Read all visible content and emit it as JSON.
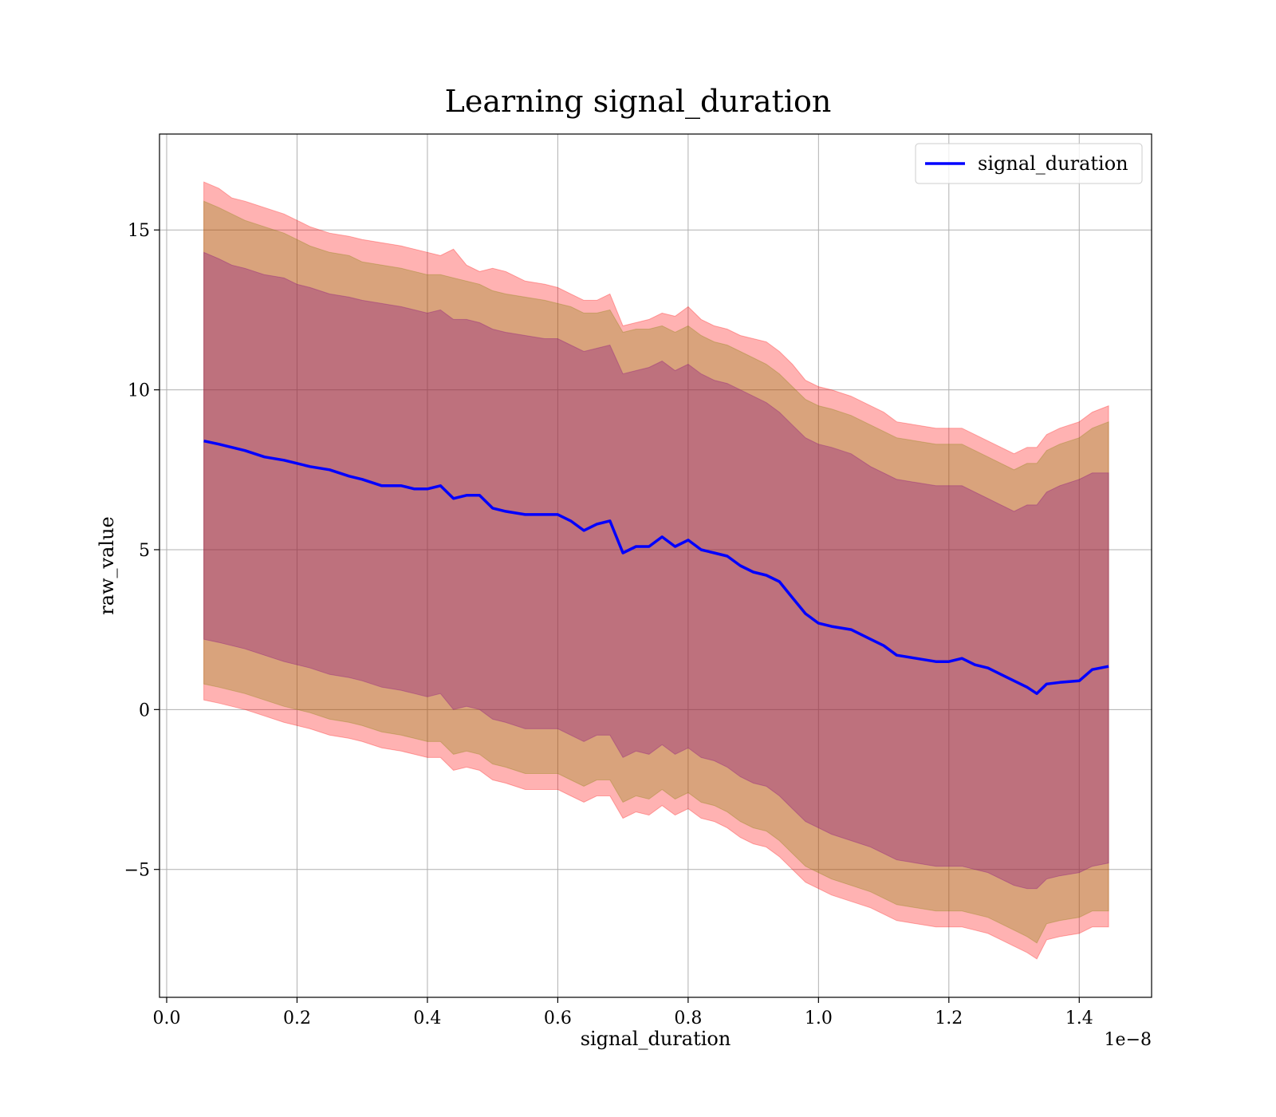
{
  "chart_data": {
    "type": "line",
    "title": "Learning signal_duration",
    "xlabel": "signal_duration",
    "ylabel": "raw_value",
    "x_offset_label": "1e−8",
    "xlim": [
      -0.011,
      1.511
    ],
    "ylim": [
      -9.0,
      18.0
    ],
    "x_ticks": [
      0.0,
      0.2,
      0.4,
      0.6,
      0.8,
      1.0,
      1.2,
      1.4
    ],
    "x_tick_labels": [
      "0.0",
      "0.2",
      "0.4",
      "0.6",
      "0.8",
      "1.0",
      "1.2",
      "1.4"
    ],
    "y_ticks": [
      -5,
      0,
      5,
      10,
      15
    ],
    "y_tick_labels": [
      "−5",
      "0",
      "5",
      "10",
      "15"
    ],
    "grid": true,
    "legend_position": "top-right",
    "series": [
      {
        "name": "signal_duration",
        "color": "#0000ff",
        "x": [
          0.057,
          0.08,
          0.1,
          0.12,
          0.15,
          0.18,
          0.2,
          0.22,
          0.25,
          0.28,
          0.3,
          0.33,
          0.36,
          0.38,
          0.4,
          0.42,
          0.44,
          0.46,
          0.48,
          0.5,
          0.52,
          0.55,
          0.58,
          0.6,
          0.62,
          0.64,
          0.66,
          0.68,
          0.7,
          0.72,
          0.74,
          0.76,
          0.78,
          0.8,
          0.82,
          0.84,
          0.86,
          0.88,
          0.9,
          0.92,
          0.94,
          0.96,
          0.98,
          1.0,
          1.02,
          1.05,
          1.08,
          1.1,
          1.12,
          1.15,
          1.18,
          1.2,
          1.22,
          1.24,
          1.26,
          1.28,
          1.3,
          1.32,
          1.335,
          1.35,
          1.37,
          1.4,
          1.42,
          1.445
        ],
        "y": [
          8.4,
          8.3,
          8.2,
          8.1,
          7.9,
          7.8,
          7.7,
          7.6,
          7.5,
          7.3,
          7.2,
          7.0,
          7.0,
          6.9,
          6.9,
          7.0,
          6.6,
          6.7,
          6.7,
          6.3,
          6.2,
          6.1,
          6.1,
          6.1,
          5.9,
          5.6,
          5.8,
          5.9,
          4.9,
          5.1,
          5.1,
          5.4,
          5.1,
          5.3,
          5.0,
          4.9,
          4.8,
          4.5,
          4.3,
          4.2,
          4.0,
          3.5,
          3.0,
          2.7,
          2.6,
          2.5,
          2.2,
          2.0,
          1.7,
          1.6,
          1.5,
          1.5,
          1.6,
          1.4,
          1.3,
          1.1,
          0.9,
          0.7,
          0.5,
          0.8,
          0.85,
          0.9,
          1.25,
          1.35
        ]
      }
    ],
    "bands": [
      {
        "color": "#ff0000",
        "opacity": 0.3,
        "upper": [
          16.5,
          16.3,
          16.0,
          15.9,
          15.7,
          15.5,
          15.3,
          15.1,
          14.9,
          14.8,
          14.7,
          14.6,
          14.5,
          14.4,
          14.3,
          14.2,
          14.4,
          13.9,
          13.7,
          13.8,
          13.7,
          13.4,
          13.3,
          13.2,
          13.0,
          12.8,
          12.8,
          13.0,
          12.0,
          12.1,
          12.2,
          12.4,
          12.3,
          12.6,
          12.2,
          12.0,
          11.9,
          11.7,
          11.6,
          11.5,
          11.2,
          10.8,
          10.3,
          10.1,
          10.0,
          9.8,
          9.5,
          9.3,
          9.0,
          8.9,
          8.8,
          8.8,
          8.8,
          8.6,
          8.4,
          8.2,
          8.0,
          8.2,
          8.2,
          8.6,
          8.8,
          9.0,
          9.3,
          9.5
        ],
        "lower": [
          0.3,
          0.2,
          0.1,
          0.0,
          -0.2,
          -0.4,
          -0.5,
          -0.6,
          -0.8,
          -0.9,
          -1.0,
          -1.2,
          -1.3,
          -1.4,
          -1.5,
          -1.5,
          -1.9,
          -1.8,
          -1.9,
          -2.2,
          -2.3,
          -2.5,
          -2.5,
          -2.5,
          -2.7,
          -2.9,
          -2.7,
          -2.7,
          -3.4,
          -3.2,
          -3.3,
          -3.0,
          -3.3,
          -3.1,
          -3.4,
          -3.5,
          -3.7,
          -4.0,
          -4.2,
          -4.3,
          -4.6,
          -5.0,
          -5.4,
          -5.6,
          -5.8,
          -6.0,
          -6.2,
          -6.4,
          -6.6,
          -6.7,
          -6.8,
          -6.8,
          -6.8,
          -6.9,
          -7.0,
          -7.2,
          -7.4,
          -7.6,
          -7.8,
          -7.2,
          -7.1,
          -7.0,
          -6.8,
          -6.8
        ]
      },
      {
        "color": "#808000",
        "opacity": 0.3,
        "upper": [
          15.9,
          15.7,
          15.5,
          15.3,
          15.1,
          14.9,
          14.7,
          14.5,
          14.3,
          14.2,
          14.0,
          13.9,
          13.8,
          13.7,
          13.6,
          13.6,
          13.5,
          13.4,
          13.3,
          13.1,
          13.0,
          12.9,
          12.8,
          12.7,
          12.6,
          12.4,
          12.4,
          12.5,
          11.8,
          11.9,
          11.9,
          12.0,
          11.8,
          12.0,
          11.7,
          11.5,
          11.4,
          11.2,
          11.0,
          10.8,
          10.5,
          10.1,
          9.7,
          9.5,
          9.4,
          9.2,
          8.9,
          8.7,
          8.5,
          8.4,
          8.3,
          8.3,
          8.3,
          8.1,
          7.9,
          7.7,
          7.5,
          7.7,
          7.7,
          8.1,
          8.3,
          8.5,
          8.8,
          9.0
        ],
        "lower": [
          0.8,
          0.7,
          0.6,
          0.5,
          0.3,
          0.1,
          0.0,
          -0.1,
          -0.3,
          -0.4,
          -0.5,
          -0.7,
          -0.8,
          -0.9,
          -1.0,
          -1.0,
          -1.4,
          -1.3,
          -1.4,
          -1.7,
          -1.8,
          -2.0,
          -2.0,
          -2.0,
          -2.2,
          -2.4,
          -2.2,
          -2.2,
          -2.9,
          -2.7,
          -2.8,
          -2.5,
          -2.8,
          -2.6,
          -2.9,
          -3.0,
          -3.2,
          -3.5,
          -3.7,
          -3.8,
          -4.1,
          -4.5,
          -4.9,
          -5.1,
          -5.3,
          -5.5,
          -5.7,
          -5.9,
          -6.1,
          -6.2,
          -6.3,
          -6.3,
          -6.3,
          -6.4,
          -6.5,
          -6.7,
          -6.9,
          -7.1,
          -7.3,
          -6.7,
          -6.6,
          -6.5,
          -6.3,
          -6.3
        ]
      },
      {
        "color": "#800080",
        "opacity": 0.3,
        "upper": [
          14.3,
          14.1,
          13.9,
          13.8,
          13.6,
          13.5,
          13.3,
          13.2,
          13.0,
          12.9,
          12.8,
          12.7,
          12.6,
          12.5,
          12.4,
          12.5,
          12.2,
          12.2,
          12.1,
          11.9,
          11.8,
          11.7,
          11.6,
          11.6,
          11.4,
          11.2,
          11.3,
          11.4,
          10.5,
          10.6,
          10.7,
          10.9,
          10.6,
          10.8,
          10.5,
          10.3,
          10.2,
          10.0,
          9.8,
          9.6,
          9.3,
          8.9,
          8.5,
          8.3,
          8.2,
          8.0,
          7.6,
          7.4,
          7.2,
          7.1,
          7.0,
          7.0,
          7.0,
          6.8,
          6.6,
          6.4,
          6.2,
          6.4,
          6.4,
          6.8,
          7.0,
          7.2,
          7.4,
          7.4
        ],
        "lower": [
          2.2,
          2.1,
          2.0,
          1.9,
          1.7,
          1.5,
          1.4,
          1.3,
          1.1,
          1.0,
          0.9,
          0.7,
          0.6,
          0.5,
          0.4,
          0.5,
          0.0,
          0.1,
          0.0,
          -0.3,
          -0.4,
          -0.6,
          -0.6,
          -0.6,
          -0.8,
          -1.0,
          -0.8,
          -0.8,
          -1.5,
          -1.3,
          -1.4,
          -1.1,
          -1.4,
          -1.2,
          -1.5,
          -1.6,
          -1.8,
          -2.1,
          -2.3,
          -2.4,
          -2.7,
          -3.1,
          -3.5,
          -3.7,
          -3.9,
          -4.1,
          -4.3,
          -4.5,
          -4.7,
          -4.8,
          -4.9,
          -4.9,
          -4.9,
          -5.0,
          -5.1,
          -5.3,
          -5.5,
          -5.6,
          -5.6,
          -5.3,
          -5.2,
          -5.1,
          -4.9,
          -4.8
        ]
      }
    ]
  }
}
